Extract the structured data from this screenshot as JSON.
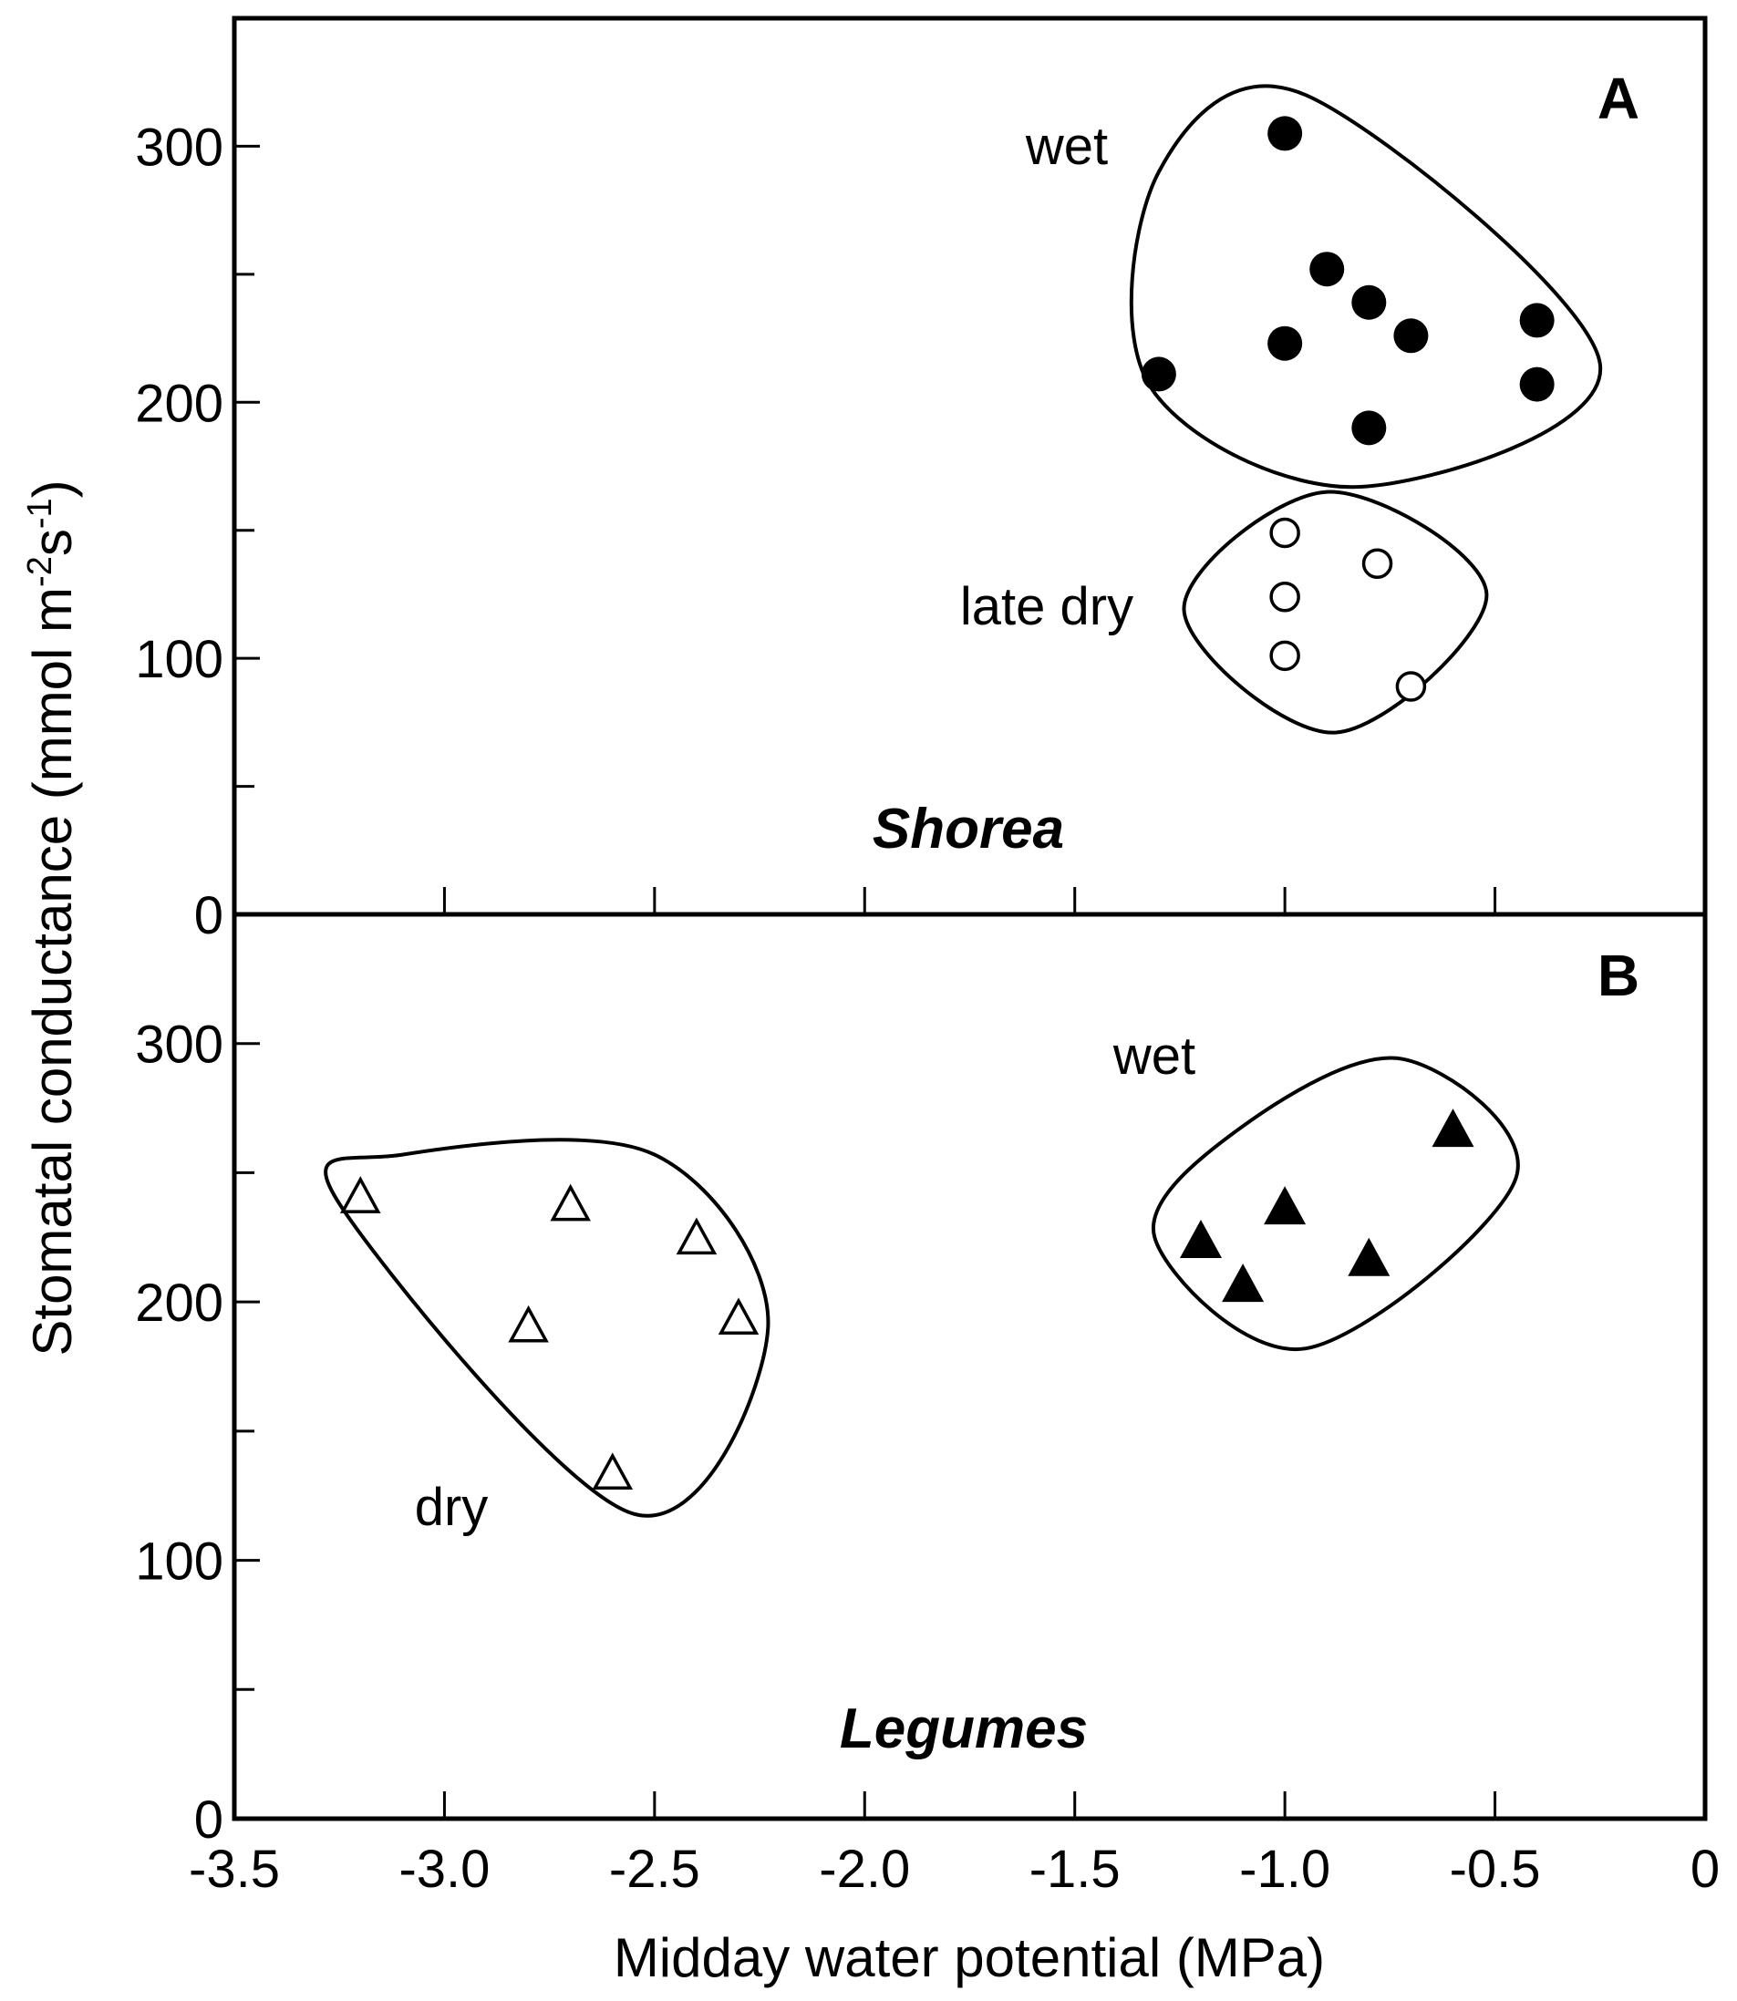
{
  "chart_data": {
    "type": "scatter",
    "xlabel": "Midday water potential  (MPa)",
    "ylabel_main": "Stomatal conductance (mmol m",
    "ylabel_sup1": "-2",
    "ylabel_mid": "s",
    "ylabel_sup2": "-1",
    "ylabel_end": ")",
    "xlim": [
      -3.5,
      0
    ],
    "x_ticks": [
      -3.5,
      -3.0,
      -2.5,
      -2.0,
      -1.5,
      -1.0,
      -0.5,
      0
    ],
    "x_tick_labels": [
      "-3.5",
      "-3.0",
      "-2.5",
      "-2.0",
      "-1.5",
      "-1.0",
      "-0.5",
      "0"
    ],
    "grid": false,
    "panels": [
      {
        "letter": "A",
        "name": "Shorea",
        "ylim": [
          0,
          350
        ],
        "y_ticks": [
          0,
          100,
          200,
          300
        ],
        "y_tick_labels": [
          "0",
          "100",
          "200",
          "300"
        ],
        "series": [
          {
            "label": "wet",
            "marker": "filled-circle",
            "points": [
              [
                -1.0,
                305
              ],
              [
                -0.9,
                252
              ],
              [
                -0.8,
                239
              ],
              [
                -0.7,
                226
              ],
              [
                -1.0,
                223
              ],
              [
                -1.3,
                211
              ],
              [
                -0.8,
                190
              ],
              [
                -0.4,
                232
              ],
              [
                -0.4,
                207
              ]
            ]
          },
          {
            "label": "late dry",
            "marker": "open-circle",
            "points": [
              [
                -1.0,
                149
              ],
              [
                -0.78,
                137
              ],
              [
                -1.0,
                124
              ],
              [
                -1.0,
                101
              ],
              [
                -0.7,
                89
              ]
            ]
          }
        ]
      },
      {
        "letter": "B",
        "name": "Legumes",
        "ylim": [
          0,
          350
        ],
        "y_ticks": [
          0,
          100,
          200,
          300
        ],
        "y_tick_labels": [
          "0",
          "100",
          "200",
          "300"
        ],
        "series": [
          {
            "label": "dry",
            "marker": "open-triangle",
            "points": [
              [
                -3.2,
                240
              ],
              [
                -2.7,
                237
              ],
              [
                -2.4,
                224
              ],
              [
                -2.3,
                193
              ],
              [
                -2.8,
                190
              ],
              [
                -2.6,
                133
              ]
            ]
          },
          {
            "label": "wet",
            "marker": "filled-triangle",
            "points": [
              [
                -0.6,
                266
              ],
              [
                -1.0,
                236
              ],
              [
                -1.2,
                223
              ],
              [
                -0.8,
                216
              ],
              [
                -1.1,
                206
              ]
            ]
          }
        ]
      }
    ]
  }
}
